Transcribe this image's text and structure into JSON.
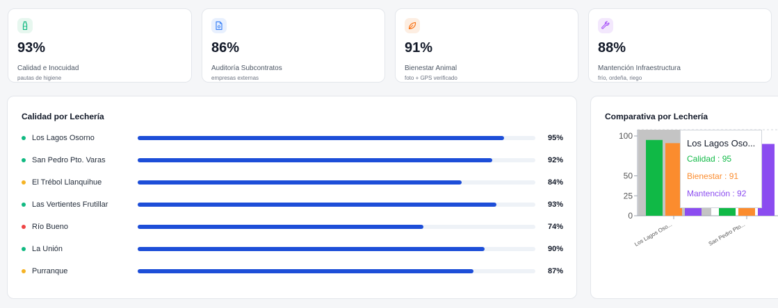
{
  "kpis": [
    {
      "value": "93%",
      "label": "Calidad e Inocuidad",
      "sub": "pautas de higiene",
      "icon": "bottle-icon",
      "color": "#10b981",
      "bg": "#e7f7ef"
    },
    {
      "value": "86%",
      "label": "Auditoría Subcontratos",
      "sub": "empresas externas",
      "icon": "document-icon",
      "color": "#3b82f6",
      "bg": "#e8f0fe"
    },
    {
      "value": "91%",
      "label": "Bienestar Animal",
      "sub": "foto + GPS verificado",
      "icon": "leaf-icon",
      "color": "#f97316",
      "bg": "#fdeee2"
    },
    {
      "value": "88%",
      "label": "Mantención Infraestructura",
      "sub": "frío, ordeña, riego",
      "icon": "wrench-icon",
      "color": "#a855f7",
      "bg": "#f3e8fd"
    }
  ],
  "quality": {
    "title": "Calidad por Lechería",
    "rows": [
      {
        "name": "Los Lagos Osorno",
        "value": 95,
        "pct": "95%",
        "status": "#10b981"
      },
      {
        "name": "San Pedro Pto. Varas",
        "value": 92,
        "pct": "92%",
        "status": "#10b981"
      },
      {
        "name": "El Trébol Llanquihue",
        "value": 84,
        "pct": "84%",
        "status": "#f5b324"
      },
      {
        "name": "Las Vertientes Frutillar",
        "value": 93,
        "pct": "93%",
        "status": "#10b981"
      },
      {
        "name": "Río Bueno",
        "value": 74,
        "pct": "74%",
        "status": "#ef4444"
      },
      {
        "name": "La Unión",
        "value": 90,
        "pct": "90%",
        "status": "#10b981"
      },
      {
        "name": "Purranque",
        "value": 87,
        "pct": "87%",
        "status": "#f5b324"
      }
    ]
  },
  "comparison": {
    "title": "Comparativa por Lechería",
    "tooltip": {
      "title": "Los Lagos Oso...",
      "lines": [
        {
          "text": "Calidad : 95",
          "color": "#10b946"
        },
        {
          "text": "Bienestar : 91",
          "color": "#fb8c2e"
        },
        {
          "text": "Mantención : 92",
          "color": "#8b4cf0"
        }
      ]
    }
  },
  "chart_data": {
    "type": "bar",
    "categories": [
      "Los Lagos Oso...",
      "San Pedro Pto..."
    ],
    "series": [
      {
        "name": "Calidad",
        "values": [
          95,
          92
        ],
        "color": "#10b946"
      },
      {
        "name": "Bienestar",
        "values": [
          91,
          89
        ],
        "color": "#fb8c2e"
      },
      {
        "name": "Mantención",
        "values": [
          92,
          90
        ],
        "color": "#8b4cf0"
      }
    ],
    "yticks": [
      0,
      25,
      50,
      100
    ],
    "ylim": [
      0,
      100
    ],
    "hovered_category": "Los Lagos Oso..."
  }
}
